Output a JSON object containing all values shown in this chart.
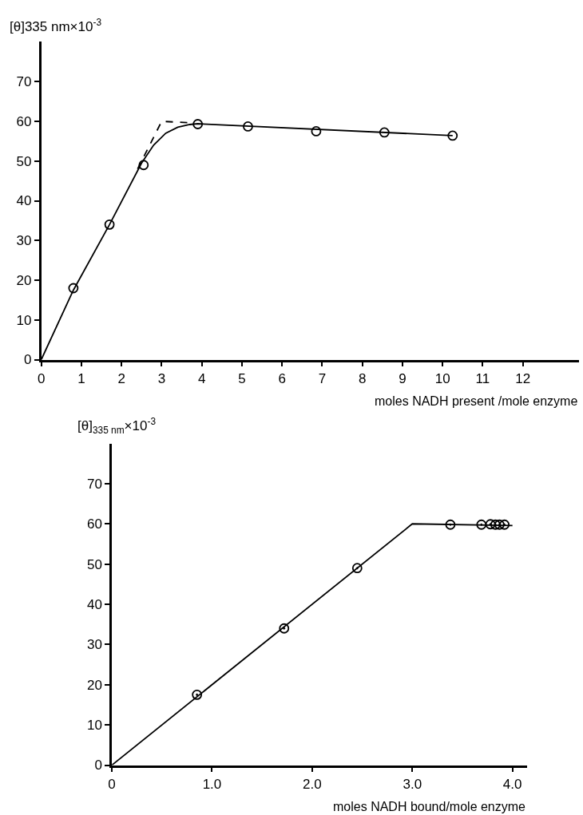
{
  "chart_data": [
    {
      "type": "scatter",
      "xlabel": "moles NADH present /mole enzyme",
      "ylabel": "[θ]335 nm×10$^{-3}$",
      "xlim": [
        0,
        13.4
      ],
      "xticks": [
        0,
        1,
        2,
        3,
        4,
        5,
        6,
        7,
        8,
        9,
        10,
        11,
        12
      ],
      "ylim": [
        0,
        80
      ],
      "yticks": [
        0,
        10,
        20,
        30,
        40,
        50,
        60,
        70
      ],
      "series": [
        {
          "type": "line",
          "color": "#000000",
          "line_style": "solid",
          "marker": "none",
          "x": [
            0,
            0.8,
            1.7,
            2.5,
            2.8,
            3.1,
            3.4,
            3.7,
            3.9,
            10.25
          ],
          "values": [
            0,
            17.5,
            34,
            49.5,
            54,
            57,
            58.5,
            59.2,
            59.4,
            56.4
          ]
        },
        {
          "type": "line",
          "color": "#000000",
          "line_style": "dashed",
          "marker": "none",
          "x": [
            2.4,
            3.0,
            3.75
          ],
          "values": [
            48,
            60,
            59.6
          ]
        },
        {
          "color": "#000000",
          "marker": "circle",
          "x": [
            0.8,
            1.7,
            2.55,
            3.9,
            5.15,
            6.85,
            8.55,
            10.25
          ],
          "values": [
            18,
            34,
            49,
            59.3,
            58.7,
            57.5,
            57.2,
            56.4
          ]
        }
      ]
    },
    {
      "type": "scatter",
      "xlabel": "moles NADH bound/mole enzyme",
      "ylabel": "[θ]$_{335 nm}$×10$^{-3}$",
      "xlim": [
        0,
        4.15
      ],
      "xticks": [
        0,
        {
          "value": 1,
          "label": "1.0"
        },
        {
          "value": 2,
          "label": "2.0"
        },
        {
          "value": 3,
          "label": "3.0"
        },
        {
          "value": 4,
          "label": "4.0"
        }
      ],
      "ylim": [
        0,
        80
      ],
      "yticks": [
        0,
        10,
        20,
        30,
        40,
        50,
        60,
        70
      ],
      "series": [
        {
          "type": "line",
          "color": "#000000",
          "line_style": "solid",
          "marker": "none",
          "x": [
            0,
            3.0,
            4.0
          ],
          "values": [
            0,
            60,
            59.6
          ]
        },
        {
          "color": "#000000",
          "marker": "circle",
          "x": [
            0.85,
            1.72,
            2.45,
            3.38,
            3.69,
            3.78,
            3.83,
            3.87,
            3.92
          ],
          "values": [
            17.5,
            34,
            49,
            59.8,
            59.8,
            59.9,
            59.8,
            59.8,
            59.8
          ]
        }
      ]
    }
  ]
}
